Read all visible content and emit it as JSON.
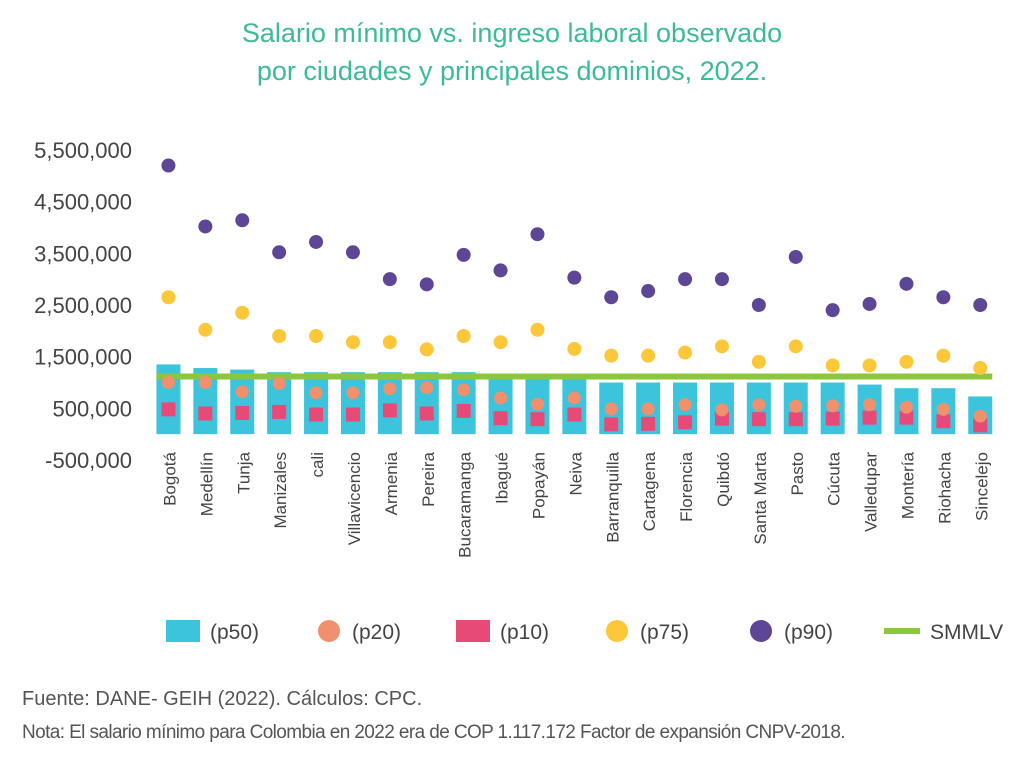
{
  "title_lines": [
    "Salario mínimo vs. ingreso laboral observado",
    "por ciudades y principales dominios, 2022."
  ],
  "footer": {
    "source": "Fuente: DANE- GEIH (2022). Cálculos: CPC.",
    "note": "Nota: El salario mínimo para Colombia en 2022 era de COP 1.117.172 Factor de expansión CNPV-2018."
  },
  "colors": {
    "title": "#3dba98",
    "p50": "#3cc4dc",
    "p20": "#f0906c",
    "p10": "#e84a78",
    "p75": "#fcc83a",
    "p90": "#5e4696",
    "smmlv": "#8cc63e",
    "axis_text": "#444444"
  },
  "chart_data": {
    "type": "bar",
    "title": "Salario mínimo vs. ingreso laboral observado por ciudades y principales dominios, 2022.",
    "xlabel": "",
    "ylabel": "",
    "ylim": [
      -500000,
      5500000
    ],
    "yticks": [
      5500000,
      4500000,
      3500000,
      2500000,
      1500000,
      500000,
      -500000
    ],
    "ytick_labels": [
      "5,500,000",
      "4,500,000",
      "3,500,000",
      "2,500,000",
      "1,500,000",
      "500,000",
      "-500,000"
    ],
    "grid": false,
    "legend_position": "bottom",
    "categories": [
      "Bogotá",
      "Medellín",
      "Tunja",
      "Manizales",
      "cali",
      "Villavicencio",
      "Armenia",
      "Pereira",
      "Bucaramanga",
      "Ibagué",
      "Popayán",
      "Neiva",
      "Barranquilla",
      "Cartagena",
      "Florencia",
      "Quibdó",
      "Santa Marta",
      "Pasto",
      "Cúcuta",
      "Valledupar",
      "Montería",
      "Riohacha",
      "Sincelejo"
    ],
    "series": [
      {
        "name": "(p50)",
        "type": "bar",
        "values": [
          1350000,
          1280000,
          1250000,
          1200000,
          1200000,
          1200000,
          1200000,
          1200000,
          1200000,
          1100000,
          1080000,
          1100000,
          1000000,
          1000000,
          1000000,
          1000000,
          1000000,
          1000000,
          1000000,
          960000,
          890000,
          890000,
          730000
        ]
      },
      {
        "name": "(p20)",
        "type": "circle",
        "values": [
          1000000,
          1000000,
          820000,
          980000,
          800000,
          800000,
          880000,
          900000,
          860000,
          700000,
          580000,
          700000,
          490000,
          490000,
          570000,
          470000,
          570000,
          540000,
          550000,
          570000,
          520000,
          480000,
          350000
        ]
      },
      {
        "name": "(p10)",
        "type": "square",
        "values": [
          480000,
          400000,
          410000,
          430000,
          380000,
          380000,
          460000,
          400000,
          450000,
          310000,
          290000,
          380000,
          190000,
          200000,
          230000,
          300000,
          290000,
          290000,
          300000,
          320000,
          320000,
          250000,
          170000
        ]
      },
      {
        "name": "(p75)",
        "type": "circle",
        "values": [
          2650000,
          2020000,
          2350000,
          1900000,
          1900000,
          1780000,
          1780000,
          1640000,
          1900000,
          1780000,
          2020000,
          1650000,
          1520000,
          1520000,
          1580000,
          1700000,
          1400000,
          1700000,
          1330000,
          1330000,
          1400000,
          1520000,
          1280000
        ]
      },
      {
        "name": "(p90)",
        "type": "circle",
        "values": [
          5200000,
          4020000,
          4140000,
          3520000,
          3720000,
          3520000,
          3000000,
          2900000,
          3470000,
          3170000,
          3870000,
          3030000,
          2650000,
          2770000,
          3000000,
          3000000,
          2500000,
          3430000,
          2400000,
          2520000,
          2910000,
          2650000,
          2500000
        ]
      },
      {
        "name": "SMMLV",
        "type": "line",
        "values": [
          1117172,
          1117172,
          1117172,
          1117172,
          1117172,
          1117172,
          1117172,
          1117172,
          1117172,
          1117172,
          1117172,
          1117172,
          1117172,
          1117172,
          1117172,
          1117172,
          1117172,
          1117172,
          1117172,
          1117172,
          1117172,
          1117172,
          1117172
        ]
      }
    ]
  }
}
